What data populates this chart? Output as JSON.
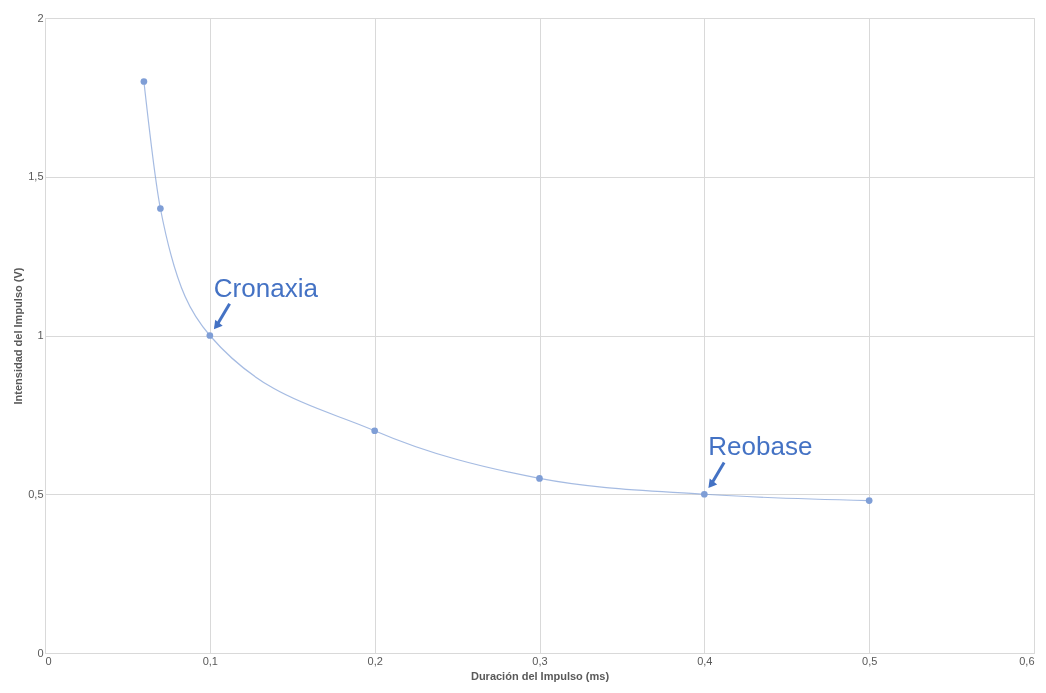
{
  "chart_data": {
    "type": "line",
    "xlabel": "Duración del Impulso (ms)",
    "ylabel": "Intensidad del Impulso (V)",
    "x": [
      0.06,
      0.07,
      0.1,
      0.2,
      0.3,
      0.4,
      0.5
    ],
    "series": [
      {
        "color": "#7f9ed6",
        "values": [
          1.8,
          1.4,
          1.0,
          0.7,
          0.55,
          0.5,
          0.48
        ]
      }
    ],
    "xlim": [
      0,
      0.6
    ],
    "ylim": [
      0,
      2
    ],
    "xticks": [
      0,
      {
        "value": 0.1,
        "label": "0,1"
      },
      {
        "value": 0.2,
        "label": "0,2"
      },
      {
        "value": 0.3,
        "label": "0,3"
      },
      {
        "value": 0.4,
        "label": "0,4"
      },
      {
        "value": 0.5,
        "label": "0,5"
      },
      {
        "value": 0.6,
        "label": "0,6"
      }
    ],
    "yticks": [
      0,
      {
        "value": 0.5,
        "label": "0,5"
      },
      1,
      {
        "value": 1.5,
        "label": "1,5"
      },
      2
    ],
    "annotations": [
      {
        "text": "Cronaxia",
        "x": 0.1,
        "y": 1.0
      },
      {
        "text": "Reobase",
        "x": 0.4,
        "y": 0.5
      }
    ],
    "grid": true,
    "marker": "circle",
    "line_style": "solid"
  }
}
